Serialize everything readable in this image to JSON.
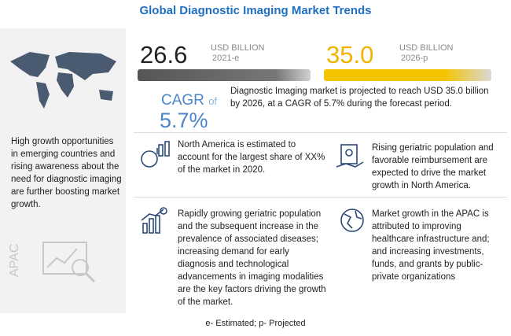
{
  "header": {
    "title": "Global Diagnostic Imaging Market Trends"
  },
  "left_panel": {
    "text": "High growth opportunities in emerging countries and rising awareness about the need for diagnostic imaging are further boosting market growth.",
    "region": "APAC"
  },
  "market_size": [
    {
      "value": "26.6",
      "unit": "USD BILLION",
      "year": "2021-e"
    },
    {
      "value": "35.0",
      "unit": "USD BILLION",
      "year": "2026-p"
    }
  ],
  "cagr": {
    "label": "CAGR",
    "of": "of",
    "value": "5.7%"
  },
  "description": "Diagnostic Imaging market is projected to reach USD 35.0 billion by 2026, at a CAGR of 5.7% during the forecast period.",
  "insights": [
    "North America is estimated to account for the largest share of XX% of the market in 2020.",
    "Rising geriatric population and favorable reimbursement are expected to drive the market growth in North America.",
    "Rapidly growing geriatric population and the subsequent increase in the prevalence of associated diseases; increasing demand for early diagnosis and technological advancements in imaging modalities are the key factors driving the growth of the market.",
    "Market growth in the APAC is attributed to improving healthcare infrastructure and; and increasing investments, funds, and grants by public-private organizations"
  ],
  "footer": "e- Estimated; p- Projected"
}
